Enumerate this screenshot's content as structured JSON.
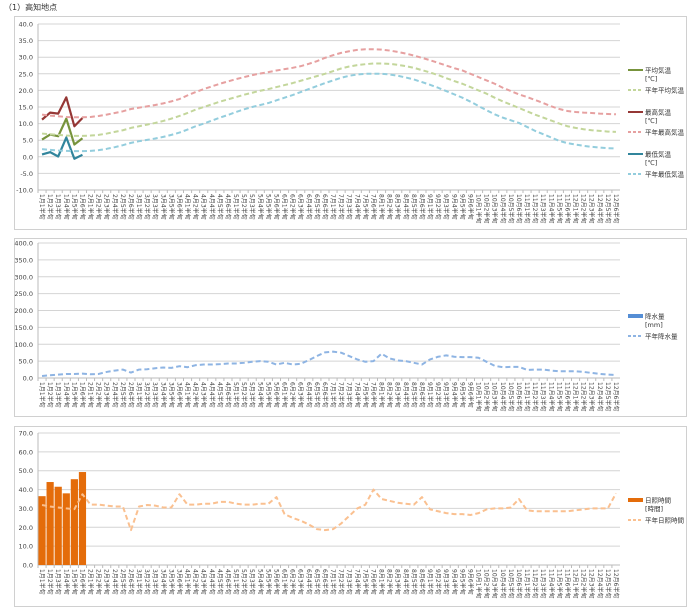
{
  "page_title": "（1）高知地点",
  "categories": [
    "1月1半旬",
    "1月2半旬",
    "1月3半旬",
    "1月4半旬",
    "1月5半旬",
    "1月6半旬",
    "2月1半旬",
    "2月2半旬",
    "2月3半旬",
    "2月4半旬",
    "2月5半旬",
    "2月6半旬",
    "3月1半旬",
    "3月2半旬",
    "3月3半旬",
    "3月4半旬",
    "3月5半旬",
    "3月6半旬",
    "4月1半旬",
    "4月2半旬",
    "4月3半旬",
    "4月4半旬",
    "4月5半旬",
    "4月6半旬",
    "5月1半旬",
    "5月2半旬",
    "5月3半旬",
    "5月4半旬",
    "5月5半旬",
    "5月6半旬",
    "6月1半旬",
    "6月2半旬",
    "6月3半旬",
    "6月4半旬",
    "6月5半旬",
    "6月6半旬",
    "7月1半旬",
    "7月2半旬",
    "7月3半旬",
    "7月4半旬",
    "7月5半旬",
    "7月6半旬",
    "8月1半旬",
    "8月2半旬",
    "8月3半旬",
    "8月4半旬",
    "8月5半旬",
    "8月6半旬",
    "9月1半旬",
    "9月2半旬",
    "9月3半旬",
    "9月4半旬",
    "9月5半旬",
    "9月6半旬",
    "10月1半旬",
    "10月2半旬",
    "10月3半旬",
    "10月4半旬",
    "10月5半旬",
    "10月6半旬",
    "11月1半旬",
    "11月2半旬",
    "11月3半旬",
    "11月4半旬",
    "11月5半旬",
    "11月6半旬",
    "12月1半旬",
    "12月2半旬",
    "12月3半旬",
    "12月4半旬",
    "12月5半旬",
    "12月6半旬"
  ],
  "chart_data": [
    {
      "type": "line",
      "ylim": [
        -10,
        40
      ],
      "ytick_step": 5,
      "grid": true,
      "legend_position": "right",
      "series": [
        {
          "name": "平均気温",
          "unit": "[℃]",
          "style": "solid",
          "color": "#77933c",
          "values": [
            5.2,
            6.7,
            6.2,
            11.5,
            3.7,
            5.6
          ]
        },
        {
          "name": "平年平均気温",
          "style": "dashed",
          "color": "#c3d69b",
          "values": [
            7.0,
            6.8,
            6.6,
            6.4,
            6.3,
            6.3,
            6.4,
            6.6,
            7.0,
            7.5,
            8.0,
            8.7,
            9.2,
            9.7,
            10.2,
            10.8,
            11.5,
            12.3,
            13.2,
            14.2,
            15.0,
            15.8,
            16.6,
            17.3,
            18.0,
            18.7,
            19.3,
            19.9,
            20.4,
            21.0,
            21.6,
            22.2,
            22.9,
            23.6,
            24.3,
            25.0,
            25.8,
            26.6,
            27.2,
            27.6,
            27.9,
            28.1,
            28.1,
            28.0,
            27.7,
            27.3,
            26.8,
            26.1,
            25.4,
            24.6,
            23.7,
            22.8,
            22.0,
            21.0,
            20.0,
            19.0,
            17.8,
            16.7,
            15.7,
            14.7,
            13.7,
            12.7,
            11.8,
            10.9,
            10.0,
            9.2,
            8.7,
            8.3,
            8.0,
            7.8,
            7.6,
            7.5
          ]
        },
        {
          "name": "最高気温",
          "unit": "[℃]",
          "style": "solid",
          "color": "#953735",
          "values": [
            11.2,
            13.3,
            13.0,
            17.9,
            9.2,
            11.7
          ]
        },
        {
          "name": "平年最高気温",
          "style": "dashed",
          "color": "#e6a0a0",
          "values": [
            12.7,
            12.4,
            12.2,
            12.0,
            11.9,
            11.9,
            12.0,
            12.3,
            12.7,
            13.2,
            13.7,
            14.4,
            14.8,
            15.2,
            15.6,
            16.1,
            16.7,
            17.4,
            18.5,
            19.5,
            20.4,
            21.2,
            22.0,
            22.7,
            23.4,
            24.0,
            24.6,
            25.1,
            25.5,
            26.0,
            26.4,
            26.8,
            27.3,
            28.0,
            28.8,
            29.8,
            30.6,
            31.3,
            31.8,
            32.2,
            32.4,
            32.4,
            32.3,
            32.0,
            31.6,
            31.1,
            30.5,
            29.8,
            29.1,
            28.3,
            27.5,
            26.7,
            26.0,
            25.0,
            24.0,
            23.0,
            22.0,
            20.8,
            19.8,
            18.8,
            18.0,
            17.1,
            16.2,
            15.2,
            14.4,
            13.8,
            13.5,
            13.3,
            13.2,
            13.0,
            12.9,
            12.8
          ]
        },
        {
          "name": "最低気温",
          "unit": "[℃]",
          "style": "solid",
          "color": "#31859c",
          "values": [
            0.7,
            1.4,
            0.1,
            5.8,
            -0.6,
            0.6
          ]
        },
        {
          "name": "平年最低気温",
          "style": "dashed",
          "color": "#93cddd",
          "values": [
            2.3,
            2.1,
            1.9,
            1.8,
            1.7,
            1.7,
            1.8,
            2.0,
            2.4,
            2.9,
            3.5,
            4.2,
            4.7,
            5.1,
            5.5,
            6.0,
            6.6,
            7.3,
            8.2,
            9.2,
            10.0,
            10.9,
            11.8,
            12.6,
            13.5,
            14.3,
            15.0,
            15.6,
            16.2,
            17.0,
            17.8,
            18.6,
            19.5,
            20.4,
            21.3,
            22.2,
            23.0,
            23.8,
            24.4,
            24.8,
            25.0,
            25.0,
            25.0,
            24.8,
            24.4,
            23.9,
            23.3,
            22.5,
            21.7,
            20.8,
            19.8,
            18.8,
            17.8,
            16.6,
            15.3,
            14.0,
            12.8,
            11.8,
            11.0,
            10.2,
            9.0,
            7.8,
            6.8,
            5.8,
            4.8,
            4.1,
            3.7,
            3.3,
            3.0,
            2.8,
            2.6,
            2.5
          ]
        }
      ]
    },
    {
      "type": "bar",
      "ylim": [
        0,
        400
      ],
      "ytick_step": 50,
      "grid": true,
      "legend_position": "right",
      "series": [
        {
          "name": "降水量",
          "unit": "[mm]",
          "style": "bar",
          "color": "#558ed5",
          "values": []
        },
        {
          "name": "平年降水量",
          "style": "dashed",
          "color": "#8eb4e3",
          "values": [
            6,
            8,
            10,
            12,
            12,
            13,
            11,
            12,
            18,
            22,
            25,
            16,
            25,
            26,
            29,
            31,
            30,
            35,
            32,
            38,
            40,
            40,
            41,
            43,
            43,
            45,
            48,
            50,
            48,
            40,
            45,
            40,
            42,
            53,
            65,
            76,
            78,
            75,
            65,
            55,
            48,
            50,
            72,
            58,
            52,
            50,
            45,
            40,
            55,
            63,
            67,
            63,
            62,
            62,
            60,
            48,
            36,
            32,
            33,
            33,
            24,
            25,
            25,
            22,
            20,
            20,
            20,
            18,
            15,
            12,
            10,
            9
          ]
        }
      ]
    },
    {
      "type": "bar",
      "ylim": [
        0,
        70
      ],
      "ytick_step": 10,
      "grid": true,
      "legend_position": "right",
      "series": [
        {
          "name": "日照時間",
          "unit": "[時間]",
          "style": "bar",
          "color": "#e46c0a",
          "values": [
            36.5,
            44.0,
            41.5,
            38.0,
            45.5,
            49.3
          ]
        },
        {
          "name": "平年日照時間",
          "style": "dashed",
          "color": "#fac090",
          "values": [
            31.8,
            31.0,
            30.5,
            30.0,
            29.6,
            37.5,
            32.0,
            32.0,
            31.5,
            31.0,
            31.0,
            18.5,
            31.0,
            31.8,
            31.5,
            30.5,
            30.5,
            37.5,
            32.0,
            32.0,
            32.5,
            32.5,
            33.5,
            33.5,
            32.5,
            32.0,
            32.0,
            32.5,
            32.5,
            36.0,
            27.0,
            25.0,
            23.5,
            21.5,
            19.0,
            18.5,
            19.0,
            22.0,
            26.0,
            30.0,
            32.0,
            40.0,
            35.0,
            34.0,
            33.0,
            32.5,
            32.0,
            36.0,
            29.5,
            28.5,
            27.5,
            27.0,
            27.0,
            26.5,
            27.5,
            29.5,
            30.0,
            30.0,
            30.5,
            35.0,
            29.0,
            28.5,
            28.5,
            28.5,
            28.5,
            28.5,
            29.0,
            29.5,
            30.0,
            30.0,
            30.0,
            38.0
          ]
        }
      ]
    }
  ]
}
